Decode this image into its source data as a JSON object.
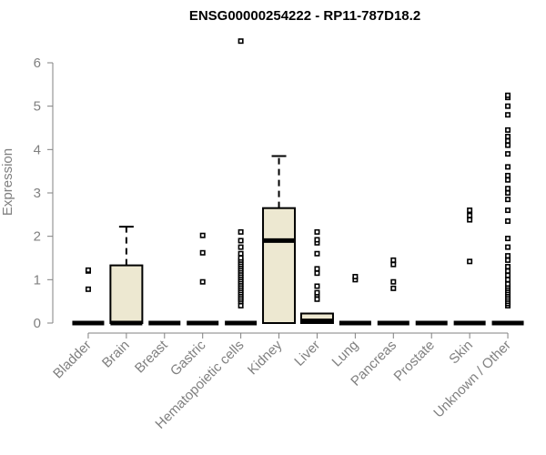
{
  "chart_data": {
    "type": "box",
    "title": "ENSG00000254222 - RP11-787D18.2",
    "ylabel": "Expression",
    "xlabel": "",
    "ylim": [
      0,
      6
    ],
    "yticks": [
      0,
      1,
      2,
      3,
      4,
      5,
      6
    ],
    "box_fill": "#ede8d1",
    "categories": [
      "Bladder",
      "Brain",
      "Breast",
      "Gastric",
      "Hematopoietic cells",
      "Kidney",
      "Liver",
      "Lung",
      "Pancreas",
      "Prostate",
      "Skin",
      "Unknown / Other"
    ],
    "boxes": [
      {
        "q1": 0,
        "median": 0,
        "q3": 0,
        "whisker_low": 0,
        "whisker_high": 0,
        "outliers": [
          0.78,
          1.2,
          1.22
        ]
      },
      {
        "q1": 0,
        "median": 0,
        "q3": 1.33,
        "whisker_low": 0,
        "whisker_high": 2.22,
        "outliers": []
      },
      {
        "q1": 0,
        "median": 0,
        "q3": 0,
        "whisker_low": 0,
        "whisker_high": 0,
        "outliers": []
      },
      {
        "q1": 0,
        "median": 0,
        "q3": 0,
        "whisker_low": 0,
        "whisker_high": 0,
        "outliers": [
          0.95,
          1.62,
          2.02
        ]
      },
      {
        "q1": 0,
        "median": 0,
        "q3": 0,
        "whisker_low": 0,
        "whisker_high": 0,
        "outliers": [
          0.4,
          0.5,
          0.55,
          0.6,
          0.65,
          0.7,
          0.75,
          0.8,
          0.85,
          0.9,
          0.95,
          1.0,
          1.05,
          1.1,
          1.15,
          1.2,
          1.25,
          1.3,
          1.35,
          1.4,
          1.45,
          1.5,
          1.6,
          1.75,
          1.9,
          2.1,
          6.5
        ]
      },
      {
        "q1": 0,
        "median": 1.9,
        "q3": 2.65,
        "whisker_low": 0,
        "whisker_high": 3.85,
        "outliers": []
      },
      {
        "q1": 0,
        "median": 0.05,
        "q3": 0.22,
        "whisker_low": 0,
        "whisker_high": 0.22,
        "outliers": [
          0.55,
          0.65,
          0.7,
          0.85,
          1.15,
          1.25,
          1.6,
          1.85,
          1.92,
          2.1
        ]
      },
      {
        "q1": 0,
        "median": 0,
        "q3": 0,
        "whisker_low": 0,
        "whisker_high": 0,
        "outliers": [
          1.0,
          1.07
        ]
      },
      {
        "q1": 0,
        "median": 0,
        "q3": 0,
        "whisker_low": 0,
        "whisker_high": 0,
        "outliers": [
          0.8,
          0.95,
          1.35,
          1.45
        ]
      },
      {
        "q1": 0,
        "median": 0,
        "q3": 0,
        "whisker_low": 0,
        "whisker_high": 0,
        "outliers": []
      },
      {
        "q1": 0,
        "median": 0,
        "q3": 0,
        "whisker_low": 0,
        "whisker_high": 0,
        "outliers": [
          1.42,
          2.38,
          2.48,
          2.6
        ]
      },
      {
        "q1": 0,
        "median": 0,
        "q3": 0,
        "whisker_low": 0,
        "whisker_high": 0,
        "outliers": [
          0.4,
          0.45,
          0.5,
          0.55,
          0.6,
          0.65,
          0.7,
          0.75,
          0.8,
          0.85,
          0.9,
          1.0,
          1.1,
          1.2,
          1.3,
          1.45,
          1.55,
          1.75,
          1.95,
          2.35,
          2.6,
          2.85,
          3.0,
          3.1,
          3.3,
          3.4,
          3.6,
          3.9,
          4.1,
          4.2,
          4.3,
          4.45,
          4.8,
          5.0,
          5.2,
          5.25
        ]
      }
    ]
  }
}
